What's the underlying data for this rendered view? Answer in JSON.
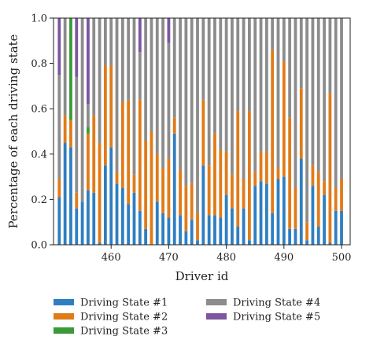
{
  "chart_data": {
    "type": "bar",
    "stacked": true,
    "xlabel": "Driver id",
    "ylabel": "Percentage of each driving state",
    "ylim": [
      0,
      1.0
    ],
    "yticks": [
      "0.0",
      "0.2",
      "0.4",
      "0.6",
      "0.8",
      "1.0"
    ],
    "xticks": [
      "460",
      "470",
      "480",
      "490",
      "500"
    ],
    "xtick_values": [
      460,
      470,
      480,
      490,
      500
    ],
    "grid": false,
    "legend_position": "bottom",
    "categories": [
      451,
      452,
      453,
      454,
      455,
      456,
      457,
      458,
      459,
      460,
      461,
      462,
      463,
      464,
      465,
      466,
      467,
      468,
      469,
      470,
      471,
      472,
      473,
      474,
      475,
      476,
      477,
      478,
      479,
      480,
      481,
      482,
      483,
      484,
      485,
      486,
      487,
      488,
      489,
      490,
      491,
      492,
      493,
      494,
      495,
      496,
      497,
      498,
      499,
      500
    ],
    "series": [
      {
        "name": "Driving State #1",
        "color": "#2f7ec1",
        "values": [
          0.21,
          0.45,
          0.43,
          0.16,
          0.19,
          0.24,
          0.23,
          0.01,
          0.35,
          0.43,
          0.27,
          0.25,
          0.18,
          0.23,
          0.15,
          0.07,
          0.0,
          0.19,
          0.14,
          0.12,
          0.49,
          0.13,
          0.06,
          0.11,
          0.02,
          0.35,
          0.13,
          0.13,
          0.12,
          0.22,
          0.16,
          0.08,
          0.16,
          0.02,
          0.26,
          0.28,
          0.27,
          0.14,
          0.29,
          0.3,
          0.07,
          0.07,
          0.38,
          0.02,
          0.26,
          0.08,
          0.22,
          0.01,
          0.15,
          0.15
        ]
      },
      {
        "name": "Driving State #2",
        "color": "#e07b1a",
        "values": [
          0.08,
          0.12,
          0.12,
          0.07,
          0.0,
          0.25,
          0.34,
          0.44,
          0.44,
          0.36,
          0.05,
          0.38,
          0.46,
          0.08,
          0.49,
          0.39,
          0.5,
          0.21,
          0.2,
          0.26,
          0.07,
          0.2,
          0.2,
          0.16,
          0.12,
          0.29,
          0.22,
          0.36,
          0.3,
          0.19,
          0.15,
          0.51,
          0.13,
          0.57,
          0.06,
          0.13,
          0.14,
          0.72,
          0.05,
          0.51,
          0.49,
          0.18,
          0.31,
          0.08,
          0.09,
          0.24,
          0.06,
          0.66,
          0.1,
          0.14
        ]
      },
      {
        "name": "Driving State #3",
        "color": "#3b9a38",
        "values": [
          0.0,
          0.0,
          0.45,
          0.0,
          0.0,
          0.03,
          0.0,
          0.0,
          0.0,
          0.0,
          0.0,
          0.0,
          0.0,
          0.0,
          0.0,
          0.0,
          0.0,
          0.0,
          0.0,
          0.0,
          0.0,
          0.0,
          0.0,
          0.0,
          0.0,
          0.0,
          0.0,
          0.0,
          0.0,
          0.0,
          0.0,
          0.0,
          0.0,
          0.0,
          0.0,
          0.0,
          0.0,
          0.0,
          0.0,
          0.0,
          0.0,
          0.0,
          0.0,
          0.0,
          0.0,
          0.0,
          0.0,
          0.0,
          0.0,
          0.0
        ]
      },
      {
        "name": "Driving State #4",
        "color": "#8c8c8c",
        "values": [
          0.46,
          0.43,
          0.0,
          0.51,
          0.81,
          0.1,
          0.43,
          0.55,
          0.21,
          0.21,
          0.68,
          0.37,
          0.36,
          0.69,
          0.21,
          0.54,
          0.5,
          0.6,
          0.66,
          0.51,
          0.44,
          0.67,
          0.74,
          0.73,
          0.86,
          0.36,
          0.65,
          0.51,
          0.58,
          0.59,
          0.69,
          0.41,
          0.71,
          0.41,
          0.68,
          0.59,
          0.59,
          0.14,
          0.66,
          0.19,
          0.44,
          0.75,
          0.31,
          0.9,
          0.65,
          0.68,
          0.72,
          0.33,
          0.75,
          0.71
        ]
      },
      {
        "name": "Driving State #5",
        "color": "#7d55a0",
        "values": [
          0.25,
          0.0,
          0.0,
          0.26,
          0.0,
          0.38,
          0.0,
          0.0,
          0.0,
          0.0,
          0.0,
          0.0,
          0.0,
          0.0,
          0.15,
          0.0,
          0.0,
          0.0,
          0.0,
          0.11,
          0.0,
          0.0,
          0.0,
          0.0,
          0.0,
          0.0,
          0.0,
          0.0,
          0.0,
          0.0,
          0.0,
          0.0,
          0.0,
          0.0,
          0.0,
          0.0,
          0.0,
          0.0,
          0.0,
          0.0,
          0.0,
          0.0,
          0.0,
          0.0,
          0.0,
          0.0,
          0.0,
          0.0,
          0.0,
          0.0
        ]
      }
    ]
  }
}
